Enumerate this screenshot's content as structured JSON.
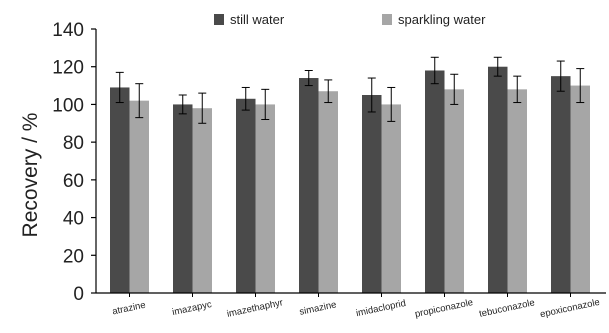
{
  "chart_data": {
    "type": "bar",
    "title": "",
    "xlabel": "",
    "ylabel": "Recovery / %",
    "ylim": [
      0,
      140
    ],
    "yticks": [
      0,
      20,
      40,
      60,
      80,
      100,
      120,
      140
    ],
    "grid": false,
    "legend_position": "top-right",
    "categories": [
      "atrazine",
      "imazapyc",
      "imazethaphyr",
      "simazine",
      "imidacloprid",
      "propiconazole",
      "tebuconazole",
      "epoxiconazole"
    ],
    "series": [
      {
        "name": "still water",
        "color": "#4a4a4a",
        "values": [
          109,
          100,
          103,
          114,
          105,
          118,
          120,
          115
        ],
        "errors": [
          8,
          5,
          6,
          4,
          9,
          7,
          5,
          8
        ]
      },
      {
        "name": "sparkling water",
        "color": "#a6a6a6",
        "values": [
          102,
          98,
          100,
          107,
          100,
          108,
          108,
          110
        ],
        "errors": [
          9,
          8,
          8,
          6,
          9,
          8,
          7,
          9
        ]
      }
    ]
  }
}
